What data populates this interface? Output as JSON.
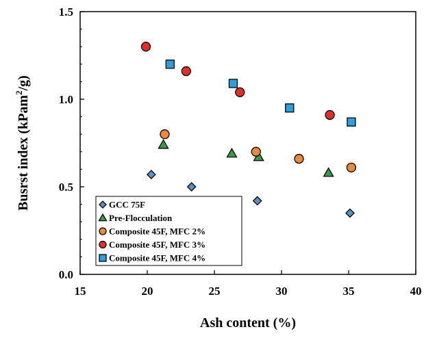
{
  "chart_data": {
    "type": "scatter",
    "title": "",
    "xlabel": "Ash content (%)",
    "ylabel_main": "Busrst index (kPam",
    "ylabel_sup": "2",
    "ylabel_tail": "/g)",
    "xlim": [
      15,
      40
    ],
    "ylim": [
      0.0,
      1.5
    ],
    "x_ticks": [
      15,
      20,
      25,
      30,
      35,
      40
    ],
    "y_ticks": [
      0.0,
      0.5,
      1.0,
      1.5
    ],
    "x_tick_labels": [
      "15",
      "20",
      "25",
      "30",
      "35",
      "40"
    ],
    "y_tick_labels": [
      "0.0",
      "0.5",
      "1.0",
      "1.5"
    ],
    "legend_position": "bottom-left",
    "series": [
      {
        "name": "GCC 75F",
        "marker": "diamond",
        "color": "#5B8FC8",
        "x": [
          20.3,
          23.3,
          28.2,
          35.1
        ],
        "y": [
          0.57,
          0.5,
          0.42,
          0.35
        ]
      },
      {
        "name": "Pre-Flocculation",
        "marker": "triangle",
        "color": "#3A9A4A",
        "x": [
          21.2,
          26.3,
          28.3,
          33.5
        ],
        "y": [
          0.74,
          0.69,
          0.67,
          0.58
        ]
      },
      {
        "name": "Composite 45F, MFC 2%",
        "marker": "circle",
        "color": "#E88A3A",
        "x": [
          21.3,
          28.1,
          31.3,
          35.2
        ],
        "y": [
          0.8,
          0.7,
          0.66,
          0.61
        ]
      },
      {
        "name": "Composite 45F, MFC 3%",
        "marker": "circle",
        "color": "#E0302A",
        "x": [
          19.9,
          22.9,
          26.9,
          33.6
        ],
        "y": [
          1.3,
          1.16,
          1.04,
          0.91
        ]
      },
      {
        "name": "Composite 45F, MFC 4%",
        "marker": "square",
        "color": "#2E9FDB",
        "x": [
          21.7,
          26.4,
          30.6,
          35.2
        ],
        "y": [
          1.2,
          1.09,
          0.95,
          0.87
        ]
      }
    ]
  }
}
